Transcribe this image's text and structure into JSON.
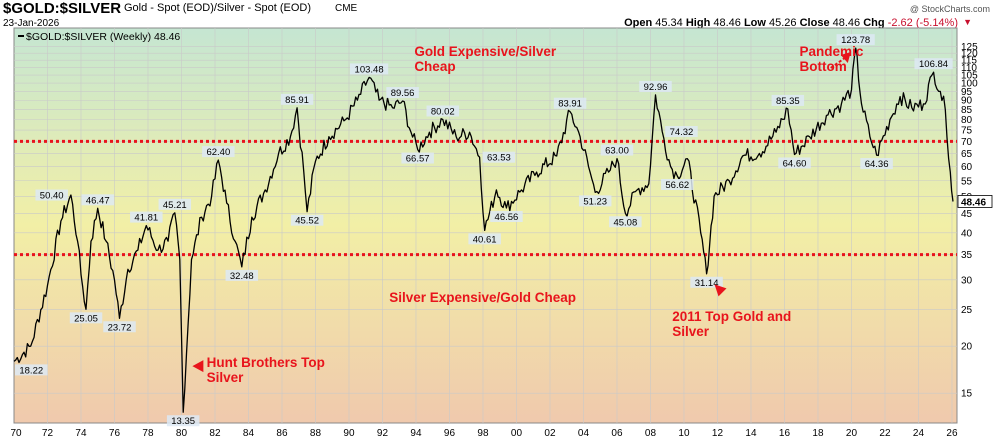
{
  "header": {
    "symbol": "$GOLD:$SILVER",
    "description": "Gold - Spot (EOD)/Silver - Spot (EOD)",
    "exchange": "CME",
    "date": "23-Jan-2026",
    "ohlc": {
      "open_label": "Open",
      "open": "45.34",
      "high_label": "High",
      "high": "48.46",
      "low_label": "Low",
      "low": "45.26",
      "close_label": "Close",
      "close": "48.46",
      "chg_label": "Chg",
      "chg": "-2.62 (-5.14%)"
    },
    "watermark": "@ StockCharts.com"
  },
  "chart_data": {
    "type": "line",
    "title": "$GOLD:$SILVER (Weekly) 48.46",
    "legend_label": "$GOLD:$SILVER (Weekly) 48.46",
    "y_scale": "log",
    "ylim": [
      12.5,
      140
    ],
    "xlim": [
      1970,
      2026.3
    ],
    "y_ticks": [
      15,
      20,
      25,
      30,
      35,
      40,
      45,
      50,
      55,
      60,
      65,
      70,
      75,
      80,
      85,
      90,
      95,
      100,
      105,
      110,
      115,
      120,
      125
    ],
    "x_ticks": [
      {
        "v": 1972,
        "label": "72"
      },
      {
        "v": 1974,
        "label": "74"
      },
      {
        "v": 1976,
        "label": "76"
      },
      {
        "v": 1978,
        "label": "78"
      },
      {
        "v": 1980,
        "label": "80"
      },
      {
        "v": 1982,
        "label": "82"
      },
      {
        "v": 1984,
        "label": "84"
      },
      {
        "v": 1986,
        "label": "86"
      },
      {
        "v": 1988,
        "label": "88"
      },
      {
        "v": 1990,
        "label": "90"
      },
      {
        "v": 1992,
        "label": "92"
      },
      {
        "v": 1994,
        "label": "94"
      },
      {
        "v": 1996,
        "label": "96"
      },
      {
        "v": 1998,
        "label": "98"
      },
      {
        "v": 2000,
        "label": "00"
      },
      {
        "v": 2002,
        "label": "02"
      },
      {
        "v": 2004,
        "label": "04"
      },
      {
        "v": 2006,
        "label": "06"
      },
      {
        "v": 2008,
        "label": "08"
      },
      {
        "v": 2010,
        "label": "10"
      },
      {
        "v": 2012,
        "label": "12"
      },
      {
        "v": 2014,
        "label": "14"
      },
      {
        "v": 2016,
        "label": "16"
      },
      {
        "v": 2018,
        "label": "18"
      },
      {
        "v": 2020,
        "label": "20"
      },
      {
        "v": 2022,
        "label": "22"
      },
      {
        "v": 2024,
        "label": "24"
      },
      {
        "v": 2026,
        "label": "26"
      }
    ],
    "x_first_label": "70",
    "last_value_label": "48.46",
    "reference_lines": [
      {
        "value": 70,
        "color": "#e8141c",
        "style": "dotted"
      },
      {
        "value": 35,
        "color": "#e8141c",
        "style": "dotted"
      }
    ],
    "series": [
      {
        "name": "$GOLD:$SILVER",
        "points": [
          [
            1970.0,
            18.22
          ],
          [
            1971.0,
            20
          ],
          [
            1972.0,
            29
          ],
          [
            1972.8,
            43
          ],
          [
            1973.4,
            50.4
          ],
          [
            1973.8,
            38
          ],
          [
            1974.0,
            31
          ],
          [
            1974.3,
            25.05
          ],
          [
            1974.6,
            38
          ],
          [
            1975.0,
            46.47
          ],
          [
            1975.5,
            38
          ],
          [
            1976.0,
            30
          ],
          [
            1976.3,
            23.72
          ],
          [
            1976.8,
            32
          ],
          [
            1977.4,
            36
          ],
          [
            1977.9,
            41.81
          ],
          [
            1978.6,
            36
          ],
          [
            1979.2,
            38
          ],
          [
            1979.6,
            45.21
          ],
          [
            1979.9,
            34
          ],
          [
            1980.1,
            13.35
          ],
          [
            1980.6,
            34
          ],
          [
            1981.2,
            44
          ],
          [
            1981.8,
            50
          ],
          [
            1982.2,
            62.4
          ],
          [
            1982.7,
            48
          ],
          [
            1983.2,
            38
          ],
          [
            1983.6,
            32.48
          ],
          [
            1984.2,
            44
          ],
          [
            1985.0,
            52
          ],
          [
            1985.8,
            65
          ],
          [
            1986.5,
            72
          ],
          [
            1986.9,
            85.91
          ],
          [
            1987.3,
            58
          ],
          [
            1987.5,
            45.52
          ],
          [
            1988.0,
            62
          ],
          [
            1988.8,
            72
          ],
          [
            1989.8,
            80
          ],
          [
            1990.5,
            90
          ],
          [
            1991.2,
            103.48
          ],
          [
            1991.8,
            90
          ],
          [
            1992.6,
            86
          ],
          [
            1993.2,
            89.56
          ],
          [
            1993.7,
            74
          ],
          [
            1994.1,
            66.57
          ],
          [
            1994.8,
            74
          ],
          [
            1995.6,
            80.02
          ],
          [
            1996.4,
            72
          ],
          [
            1997.2,
            74
          ],
          [
            1997.8,
            63.53
          ],
          [
            1998.1,
            40.61
          ],
          [
            1998.8,
            52
          ],
          [
            1999.4,
            46.56
          ],
          [
            2000.3,
            52
          ],
          [
            2001.2,
            58
          ],
          [
            2002.4,
            64
          ],
          [
            2003.2,
            83.91
          ],
          [
            2003.8,
            72
          ],
          [
            2004.3,
            60
          ],
          [
            2004.7,
            51.23
          ],
          [
            2005.5,
            58
          ],
          [
            2006.0,
            63
          ],
          [
            2006.5,
            45.08
          ],
          [
            2007.2,
            52
          ],
          [
            2007.9,
            54
          ],
          [
            2008.3,
            92.96
          ],
          [
            2008.7,
            74.32
          ],
          [
            2009.2,
            60
          ],
          [
            2009.6,
            56.62
          ],
          [
            2010.2,
            63
          ],
          [
            2011.0,
            40
          ],
          [
            2011.35,
            31.14
          ],
          [
            2011.8,
            50
          ],
          [
            2012.7,
            55
          ],
          [
            2013.5,
            64
          ],
          [
            2014.5,
            65
          ],
          [
            2015.5,
            74
          ],
          [
            2016.2,
            85.35
          ],
          [
            2016.6,
            64.6
          ],
          [
            2017.5,
            72
          ],
          [
            2018.5,
            82
          ],
          [
            2019.4,
            88
          ],
          [
            2020.0,
            96
          ],
          [
            2020.25,
            123.78
          ],
          [
            2020.6,
            88
          ],
          [
            2021.1,
            72
          ],
          [
            2021.5,
            64.36
          ],
          [
            2022.3,
            80
          ],
          [
            2022.9,
            92
          ],
          [
            2023.6,
            86
          ],
          [
            2024.3,
            88
          ],
          [
            2024.9,
            106.84
          ],
          [
            2025.3,
            95
          ],
          [
            2025.6,
            85
          ],
          [
            2025.9,
            58
          ],
          [
            2026.06,
            48.46
          ]
        ]
      }
    ],
    "value_labels": [
      {
        "x": 1970.0,
        "y": 18.22,
        "text": "18.22",
        "pos": "below"
      },
      {
        "x": 1973.4,
        "y": 50.4,
        "text": "50.40",
        "pos": "left"
      },
      {
        "x": 1974.3,
        "y": 25.05,
        "text": "25.05",
        "pos": "below"
      },
      {
        "x": 1975.0,
        "y": 46.47,
        "text": "46.47",
        "pos": "above"
      },
      {
        "x": 1976.3,
        "y": 23.72,
        "text": "23.72",
        "pos": "below"
      },
      {
        "x": 1977.9,
        "y": 41.81,
        "text": "41.81",
        "pos": "above"
      },
      {
        "x": 1979.6,
        "y": 45.21,
        "text": "45.21",
        "pos": "above"
      },
      {
        "x": 1980.1,
        "y": 13.35,
        "text": "13.35",
        "pos": "below"
      },
      {
        "x": 1982.2,
        "y": 62.4,
        "text": "62.40",
        "pos": "above"
      },
      {
        "x": 1983.6,
        "y": 32.48,
        "text": "32.48",
        "pos": "below"
      },
      {
        "x": 1986.9,
        "y": 85.91,
        "text": "85.91",
        "pos": "above"
      },
      {
        "x": 1987.5,
        "y": 45.52,
        "text": "45.52",
        "pos": "below"
      },
      {
        "x": 1991.2,
        "y": 103.48,
        "text": "103.48",
        "pos": "above"
      },
      {
        "x": 1993.2,
        "y": 89.56,
        "text": "89.56",
        "pos": "above"
      },
      {
        "x": 1994.1,
        "y": 66.57,
        "text": "66.57",
        "pos": "below"
      },
      {
        "x": 1995.6,
        "y": 80.02,
        "text": "80.02",
        "pos": "above"
      },
      {
        "x": 1997.8,
        "y": 63.53,
        "text": "63.53",
        "pos": "right"
      },
      {
        "x": 1998.1,
        "y": 40.61,
        "text": "40.61",
        "pos": "below"
      },
      {
        "x": 1999.4,
        "y": 46.56,
        "text": "46.56",
        "pos": "below"
      },
      {
        "x": 2003.2,
        "y": 83.91,
        "text": "83.91",
        "pos": "above"
      },
      {
        "x": 2004.7,
        "y": 51.23,
        "text": "51.23",
        "pos": "below"
      },
      {
        "x": 2006.0,
        "y": 63.0,
        "text": "63.00",
        "pos": "above"
      },
      {
        "x": 2006.5,
        "y": 45.08,
        "text": "45.08",
        "pos": "below"
      },
      {
        "x": 2008.3,
        "y": 92.96,
        "text": "92.96",
        "pos": "above"
      },
      {
        "x": 2008.7,
        "y": 74.32,
        "text": "74.32",
        "pos": "right"
      },
      {
        "x": 2009.6,
        "y": 56.62,
        "text": "56.62",
        "pos": "below"
      },
      {
        "x": 2011.35,
        "y": 31.14,
        "text": "31.14",
        "pos": "below"
      },
      {
        "x": 2016.2,
        "y": 85.35,
        "text": "85.35",
        "pos": "above"
      },
      {
        "x": 2016.6,
        "y": 64.6,
        "text": "64.60",
        "pos": "below"
      },
      {
        "x": 2020.25,
        "y": 123.78,
        "text": "123.78",
        "pos": "above"
      },
      {
        "x": 2021.5,
        "y": 64.36,
        "text": "64.36",
        "pos": "below"
      },
      {
        "x": 2024.9,
        "y": 106.84,
        "text": "106.84",
        "pos": "above"
      }
    ],
    "annotations": [
      {
        "text": "Gold Expensive/Silver Cheap",
        "lines": [
          "Gold Expensive/Silver",
          "Cheap"
        ],
        "x": 1993.9,
        "y": 118
      },
      {
        "text": "Silver Expensive/Gold Cheap",
        "lines": [
          "Silver Expensive/Gold Cheap"
        ],
        "x": 1992.4,
        "y": 26.2
      },
      {
        "text": "Pandemic Bottom",
        "lines": [
          "Pandemic",
          "Bottom"
        ],
        "x": 2016.9,
        "y": 118
      },
      {
        "text": "2011 Top Gold and Silver",
        "lines": [
          "2011 Top Gold and",
          "Silver"
        ],
        "x": 2009.3,
        "y": 23.3
      },
      {
        "text": "Hunt Brothers Top Silver",
        "lines": [
          "Hunt Brothers Top",
          "Silver"
        ],
        "x": 1981.5,
        "y": 17.6
      }
    ],
    "arrows": [
      {
        "x": 1980.65,
        "y": 17.7,
        "dir": "left"
      },
      {
        "x": 2012.3,
        "y": 27.8,
        "dir": "up-left"
      },
      {
        "x": 2019.6,
        "y": 118,
        "dir": "up-right"
      }
    ],
    "colors": {
      "line": "#000000",
      "annotation": "#e8141c",
      "label_fill": "#dde9f5",
      "grid": "#c9c9c9",
      "bg_top": "#c5e6d2",
      "bg_mid": "#f2efa6",
      "bg_bottom": "#f0c9ad"
    }
  }
}
